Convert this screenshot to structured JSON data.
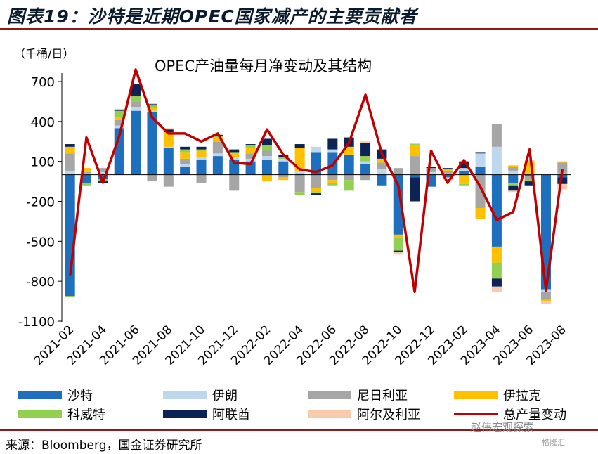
{
  "page": {
    "figure_title": "图表19：沙特是近期OPEC国家减产的主要贡献者",
    "source": "来源：Bloomberg，国金证券研究所",
    "watermark": "赵伟宏观探索",
    "watermark2": "格隆汇"
  },
  "chart_data": {
    "type": "bar",
    "title": "OPEC产油量每月净变动及其结构",
    "unit_label": "（千桶/日）",
    "xlabel": "",
    "ylabel": "",
    "ylim": [
      -1100,
      700
    ],
    "yticks": [
      700,
      400,
      100,
      -200,
      -500,
      -800,
      -1100
    ],
    "grid": false,
    "legend_position": "bottom",
    "categories": [
      "2021-02",
      "2021-03",
      "2021-04",
      "2021-05",
      "2021-06",
      "2021-07",
      "2021-08",
      "2021-09",
      "2021-10",
      "2021-11",
      "2021-12",
      "2022-01",
      "2022-02",
      "2022-03",
      "2022-04",
      "2022-05",
      "2022-06",
      "2022-07",
      "2022-08",
      "2022-09",
      "2022-10",
      "2022-11",
      "2022-12",
      "2023-01",
      "2023-02",
      "2023-03",
      "2023-04",
      "2023-05",
      "2023-06",
      "2023-07",
      "2023-08"
    ],
    "x_tick_labels": [
      "2021-02",
      "2021-04",
      "2021-06",
      "2021-08",
      "2021-10",
      "2021-12",
      "2022-02",
      "2022-04",
      "2022-06",
      "2022-08",
      "2022-10",
      "2022-12",
      "2023-02",
      "2023-04",
      "2023-06",
      "2023-08"
    ],
    "series": [
      {
        "name": "沙特",
        "color": "#1f6fbf",
        "values": [
          -910,
          -60,
          -30,
          350,
          480,
          470,
          200,
          60,
          110,
          140,
          110,
          100,
          110,
          100,
          10,
          170,
          170,
          150,
          80,
          -80,
          -450,
          -20,
          -90,
          -20,
          30,
          60,
          -540,
          -60,
          -10,
          -860,
          -20
        ]
      },
      {
        "name": "伊朗",
        "color": "#bdd7ee",
        "values": [
          30,
          10,
          20,
          20,
          30,
          10,
          10,
          20,
          20,
          20,
          20,
          20,
          30,
          20,
          20,
          40,
          20,
          0,
          20,
          40,
          0,
          0,
          20,
          10,
          20,
          100,
          210,
          30,
          10,
          -20,
          10
        ]
      },
      {
        "name": "尼日利亚",
        "color": "#a6a6a6",
        "values": [
          130,
          10,
          30,
          40,
          40,
          -50,
          -90,
          40,
          -60,
          90,
          -120,
          40,
          40,
          -20,
          -130,
          -100,
          -40,
          -40,
          -40,
          50,
          50,
          140,
          30,
          20,
          0,
          -250,
          170,
          30,
          -20,
          -60,
          80
        ]
      },
      {
        "name": "伊拉克",
        "color": "#ffc000",
        "values": [
          50,
          30,
          0,
          20,
          0,
          20,
          110,
          50,
          50,
          30,
          30,
          40,
          -50,
          -20,
          170,
          -30,
          -20,
          60,
          0,
          30,
          -20,
          80,
          0,
          10,
          -70,
          -80,
          -120,
          10,
          90,
          -10,
          10
        ]
      },
      {
        "name": "科威特",
        "color": "#92d050",
        "values": [
          -10,
          -20,
          -20,
          50,
          40,
          20,
          0,
          20,
          10,
          10,
          10,
          20,
          40,
          10,
          -20,
          -10,
          -20,
          -80,
          40,
          0,
          -100,
          10,
          0,
          0,
          -10,
          0,
          -120,
          -20,
          -20,
          0,
          0
        ]
      },
      {
        "name": "阿联酋",
        "color": "#0c2356",
        "values": [
          20,
          0,
          -10,
          10,
          90,
          10,
          20,
          20,
          20,
          10,
          20,
          10,
          50,
          20,
          30,
          -10,
          80,
          70,
          100,
          70,
          -10,
          -180,
          10,
          10,
          50,
          10,
          -60,
          -40,
          -30,
          0,
          -50
        ]
      },
      {
        "name": "阿尔及利亚",
        "color": "#f8cbad",
        "values": [
          0,
          0,
          0,
          0,
          0,
          10,
          10,
          0,
          0,
          0,
          0,
          0,
          0,
          0,
          0,
          0,
          0,
          0,
          10,
          0,
          -20,
          10,
          0,
          -20,
          0,
          0,
          -40,
          -10,
          10,
          -20,
          -40
        ]
      }
    ],
    "total": {
      "name": "总产量变动",
      "color": "#c00000",
      "values": [
        -760,
        280,
        -60,
        290,
        790,
        430,
        310,
        310,
        250,
        310,
        90,
        80,
        340,
        150,
        40,
        20,
        70,
        240,
        600,
        160,
        -80,
        -880,
        180,
        -60,
        110,
        -90,
        -340,
        -280,
        190,
        -870,
        40
      ]
    }
  }
}
